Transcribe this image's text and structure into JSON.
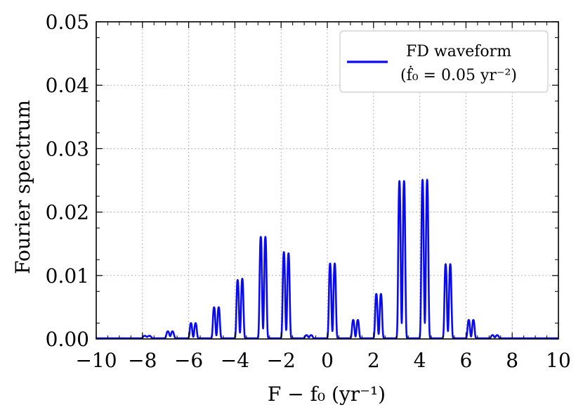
{
  "chart_data": {
    "type": "line",
    "title": "",
    "xlabel": "F − f₀ (yr⁻¹)",
    "ylabel": "Fourier spectrum",
    "xlim": [
      -10,
      10
    ],
    "ylim": [
      0,
      0.05
    ],
    "x_ticks": [
      -10,
      -8,
      -6,
      -4,
      -2,
      0,
      2,
      4,
      6,
      8,
      10
    ],
    "x_tick_labels": [
      "−10",
      "−8",
      "−6",
      "−4",
      "−2",
      "0",
      "2",
      "4",
      "6",
      "8",
      "10"
    ],
    "y_ticks": [
      0,
      0.01,
      0.02,
      0.03,
      0.04,
      0.05
    ],
    "y_tick_labels": [
      "0.00",
      "0.01",
      "0.02",
      "0.03",
      "0.04",
      "0.05"
    ],
    "grid": true,
    "legend_position": "top-right",
    "series": [
      {
        "name": "FD waveform",
        "name_line2": "(ḟ₀ = 0.05 yr⁻²)",
        "color": "#0a0aef",
        "baseline": 0.0001,
        "peaks": [
          {
            "x": -7.9,
            "y": 0.0004,
            "w": 0.07
          },
          {
            "x": -7.7,
            "y": 0.0004,
            "w": 0.07
          },
          {
            "x": -6.9,
            "y": 0.0011,
            "w": 0.06
          },
          {
            "x": -6.7,
            "y": 0.0011,
            "w": 0.06
          },
          {
            "x": -5.9,
            "y": 0.0024,
            "w": 0.05
          },
          {
            "x": -5.7,
            "y": 0.0024,
            "w": 0.05
          },
          {
            "x": -4.9,
            "y": 0.0049,
            "w": 0.05
          },
          {
            "x": -4.7,
            "y": 0.0049,
            "w": 0.05
          },
          {
            "x": -3.88,
            "y": 0.0092,
            "w": 0.05
          },
          {
            "x": -3.68,
            "y": 0.0094,
            "w": 0.05
          },
          {
            "x": -2.88,
            "y": 0.016,
            "w": 0.05
          },
          {
            "x": -2.68,
            "y": 0.016,
            "w": 0.05
          },
          {
            "x": -1.88,
            "y": 0.0136,
            "w": 0.05
          },
          {
            "x": -1.68,
            "y": 0.0134,
            "w": 0.05
          },
          {
            "x": -0.9,
            "y": 0.0005,
            "w": 0.06
          },
          {
            "x": -0.7,
            "y": 0.0005,
            "w": 0.06
          },
          {
            "x": 0.12,
            "y": 0.0118,
            "w": 0.05
          },
          {
            "x": 0.32,
            "y": 0.0118,
            "w": 0.05
          },
          {
            "x": 1.12,
            "y": 0.0029,
            "w": 0.05
          },
          {
            "x": 1.32,
            "y": 0.0029,
            "w": 0.05
          },
          {
            "x": 2.12,
            "y": 0.007,
            "w": 0.05
          },
          {
            "x": 2.32,
            "y": 0.007,
            "w": 0.05
          },
          {
            "x": 3.12,
            "y": 0.0248,
            "w": 0.05
          },
          {
            "x": 3.32,
            "y": 0.0248,
            "w": 0.05
          },
          {
            "x": 4.12,
            "y": 0.025,
            "w": 0.05
          },
          {
            "x": 4.32,
            "y": 0.025,
            "w": 0.05
          },
          {
            "x": 5.12,
            "y": 0.0117,
            "w": 0.05
          },
          {
            "x": 5.32,
            "y": 0.0117,
            "w": 0.05
          },
          {
            "x": 6.12,
            "y": 0.0029,
            "w": 0.05
          },
          {
            "x": 6.32,
            "y": 0.0029,
            "w": 0.05
          },
          {
            "x": 7.15,
            "y": 0.0005,
            "w": 0.06
          },
          {
            "x": 7.35,
            "y": 0.0005,
            "w": 0.06
          }
        ]
      }
    ]
  }
}
